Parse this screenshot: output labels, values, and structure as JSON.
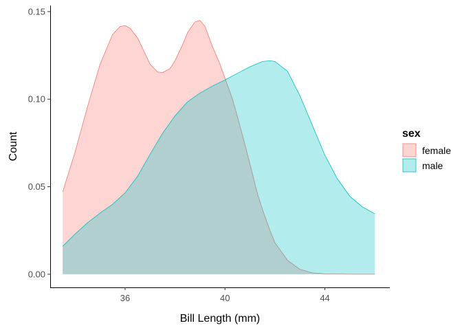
{
  "chart_data": {
    "type": "area",
    "title": "",
    "xlabel": "Bill Length (mm)",
    "ylabel": "Count",
    "xlim": [
      33.0,
      46.6
    ],
    "ylim": [
      -0.0075,
      0.1535
    ],
    "xticks": [
      36,
      40,
      44
    ],
    "yticks": [
      0.0,
      0.05,
      0.1,
      0.15
    ],
    "ytick_labels": [
      "0.00",
      "0.05",
      "0.10",
      "0.15"
    ],
    "xtick_labels": [
      "36",
      "40",
      "44"
    ],
    "grid": false,
    "legend": {
      "title": "sex",
      "position": "right"
    },
    "series": [
      {
        "name": "female",
        "fill": "#F8766D",
        "x": [
          33.5,
          34.0,
          34.5,
          35.0,
          35.5,
          35.8,
          36.0,
          36.2,
          36.5,
          36.8,
          37.0,
          37.3,
          37.5,
          37.8,
          38.0,
          38.3,
          38.5,
          38.8,
          39.0,
          39.2,
          39.5,
          39.8,
          40.0,
          40.3,
          40.5,
          40.8,
          41.0,
          41.3,
          41.5,
          41.8,
          42.0,
          42.5,
          43.0,
          43.5,
          44.0,
          44.5,
          45.0,
          45.5,
          46.0
        ],
        "y": [
          0.047,
          0.07,
          0.096,
          0.12,
          0.137,
          0.1415,
          0.142,
          0.1405,
          0.135,
          0.126,
          0.12,
          0.1155,
          0.1152,
          0.1175,
          0.122,
          0.131,
          0.138,
          0.1442,
          0.145,
          0.1415,
          0.13,
          0.12,
          0.112,
          0.1,
          0.09,
          0.074,
          0.063,
          0.046,
          0.037,
          0.025,
          0.018,
          0.008,
          0.0028,
          0.0008,
          0.0002,
          0.0001,
          0.0,
          0.0,
          0.0
        ]
      },
      {
        "name": "male",
        "fill": "#00BFC4",
        "x": [
          33.5,
          34.0,
          34.5,
          35.0,
          35.5,
          36.0,
          36.5,
          37.0,
          37.5,
          38.0,
          38.5,
          39.0,
          39.5,
          40.0,
          40.5,
          41.0,
          41.5,
          41.8,
          42.0,
          42.5,
          43.0,
          43.5,
          44.0,
          44.5,
          45.0,
          45.5,
          46.0
        ],
        "y": [
          0.016,
          0.023,
          0.0295,
          0.035,
          0.04,
          0.0465,
          0.056,
          0.0685,
          0.0805,
          0.0905,
          0.0985,
          0.1035,
          0.1075,
          0.111,
          0.1148,
          0.1185,
          0.1215,
          0.122,
          0.1215,
          0.116,
          0.102,
          0.085,
          0.068,
          0.0545,
          0.0445,
          0.0385,
          0.0345
        ]
      }
    ]
  }
}
